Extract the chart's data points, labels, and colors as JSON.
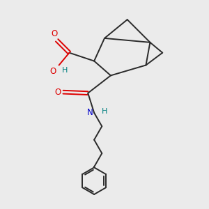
{
  "background_color": "#ebebeb",
  "bond_color": "#2a2a2a",
  "bond_width": 1.4,
  "O_color": "#dd0000",
  "N_color": "#0000cc",
  "H_color": "#008080",
  "figsize": [
    3.0,
    3.0
  ],
  "dpi": 100,
  "xlim": [
    0,
    10
  ],
  "ylim": [
    0,
    10
  ]
}
